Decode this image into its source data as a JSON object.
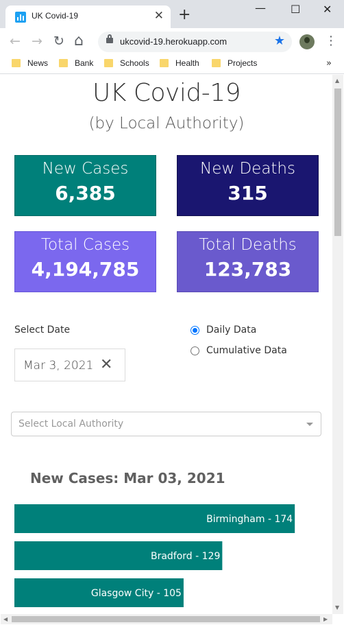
{
  "browser": {
    "tab_title": "UK Covid-19",
    "tab_close": "✕",
    "new_tab": "+",
    "window_controls": {
      "minimize": "—",
      "maximize": "☐",
      "close": "✕"
    },
    "nav": {
      "back": "←",
      "forward": "→",
      "reload": "↻",
      "home": "⌂"
    },
    "url": "ukcovid-19.herokuapp.com",
    "star": "★",
    "menu": "⋮",
    "bookmarks": [
      "News",
      "Bank",
      "Schools",
      "Health",
      "Projects"
    ],
    "bookmarks_more": "»"
  },
  "page": {
    "title": "UK Covid-19",
    "subtitle": "(by Local Authority)",
    "cards": [
      {
        "label": "New Cases",
        "value": "6,385",
        "color": "#00807a"
      },
      {
        "label": "New Deaths",
        "value": "315",
        "color": "#1a1670"
      },
      {
        "label": "Total Cases",
        "value": "4,194,785",
        "color": "#7b68ee"
      },
      {
        "label": "Total Deaths",
        "value": "123,783",
        "color": "#6a5acd"
      }
    ],
    "date_picker": {
      "label": "Select Date",
      "value": "Mar 3, 2021",
      "clear": "✕"
    },
    "data_mode": {
      "options": [
        "Daily Data",
        "Cumulative Data"
      ],
      "selected": "Daily Data"
    },
    "local_authority_select": {
      "placeholder": "Select Local Authority"
    }
  },
  "chart_data": {
    "type": "bar",
    "orientation": "horizontal",
    "title": "New Cases: Mar 03, 2021",
    "categories": [
      "Birmingham",
      "Bradford",
      "Glasgow City"
    ],
    "values": [
      174,
      129,
      105
    ],
    "labels": [
      "Birmingham - 174",
      "Bradford - 129",
      "Glasgow City - 105"
    ],
    "bar_color": "#00807a",
    "xlim": [
      0,
      182
    ]
  }
}
